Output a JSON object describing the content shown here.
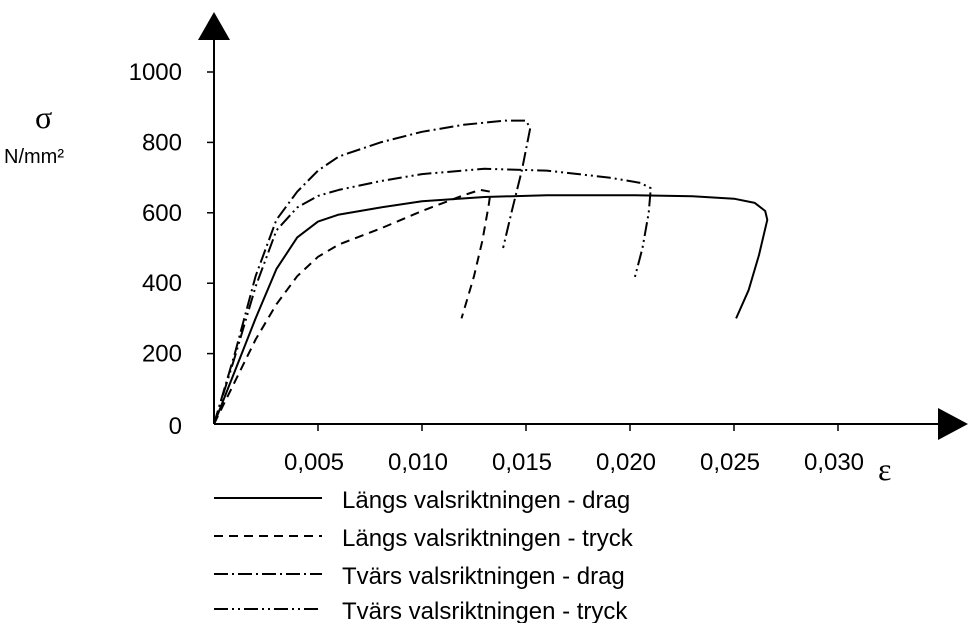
{
  "chart_data": {
    "type": "line",
    "ylabel": "σ",
    "yunit": "N/mm²",
    "xlabel": "ε",
    "xlim": [
      0,
      0.036
    ],
    "ylim": [
      0,
      1000
    ],
    "y_ticks": [
      0,
      200,
      400,
      600,
      800,
      1000
    ],
    "y_tick_labels": [
      "0",
      "200",
      "400",
      "600",
      "800",
      "1000"
    ],
    "x_ticks": [
      0.005,
      0.01,
      0.015,
      0.02,
      0.025,
      0.03
    ],
    "x_tick_labels": [
      "0,005",
      "0,010",
      "0,015",
      "0,020",
      "0,025",
      "0,030"
    ],
    "grid": false,
    "legend_position": "bottom",
    "series": [
      {
        "name": "Längs valsriktningen - drag",
        "style": "solid",
        "x": [
          0,
          0.001,
          0.002,
          0.003,
          0.004,
          0.005,
          0.006,
          0.008,
          0.01,
          0.013,
          0.016,
          0.02,
          0.023,
          0.025,
          0.026,
          0.0265,
          0.0266,
          0.0262,
          0.0257,
          0.0251
        ],
        "y": [
          0,
          150,
          300,
          440,
          530,
          575,
          595,
          615,
          633,
          645,
          650,
          650,
          647,
          640,
          628,
          605,
          580,
          480,
          380,
          300
        ]
      },
      {
        "name": "Längs valsriktningen - tryck",
        "style": "dashed",
        "x": [
          0,
          0.001,
          0.002,
          0.003,
          0.004,
          0.005,
          0.006,
          0.008,
          0.01,
          0.012,
          0.0128,
          0.0133,
          0.0132,
          0.0129,
          0.0125,
          0.0122,
          0.0119
        ],
        "y": [
          0,
          120,
          240,
          340,
          420,
          475,
          510,
          555,
          605,
          650,
          665,
          660,
          620,
          520,
          420,
          360,
          300
        ]
      },
      {
        "name": "Tvärs valsriktningen - drag",
        "style": "dash-dot",
        "x": [
          0,
          0.001,
          0.002,
          0.003,
          0.004,
          0.005,
          0.006,
          0.008,
          0.01,
          0.012,
          0.014,
          0.015,
          0.0152,
          0.0148,
          0.0143,
          0.0139
        ],
        "y": [
          0,
          200,
          420,
          580,
          660,
          720,
          760,
          800,
          830,
          850,
          862,
          862,
          840,
          720,
          600,
          500
        ]
      },
      {
        "name": "Tvärs valsriktningen - tryck",
        "style": "dash-dot-dot",
        "x": [
          0,
          0.001,
          0.002,
          0.003,
          0.004,
          0.005,
          0.006,
          0.008,
          0.01,
          0.013,
          0.016,
          0.019,
          0.0205,
          0.021,
          0.0209,
          0.0206,
          0.0202
        ],
        "y": [
          0,
          190,
          390,
          550,
          615,
          648,
          665,
          690,
          710,
          725,
          720,
          700,
          685,
          670,
          600,
          500,
          410
        ]
      }
    ]
  }
}
